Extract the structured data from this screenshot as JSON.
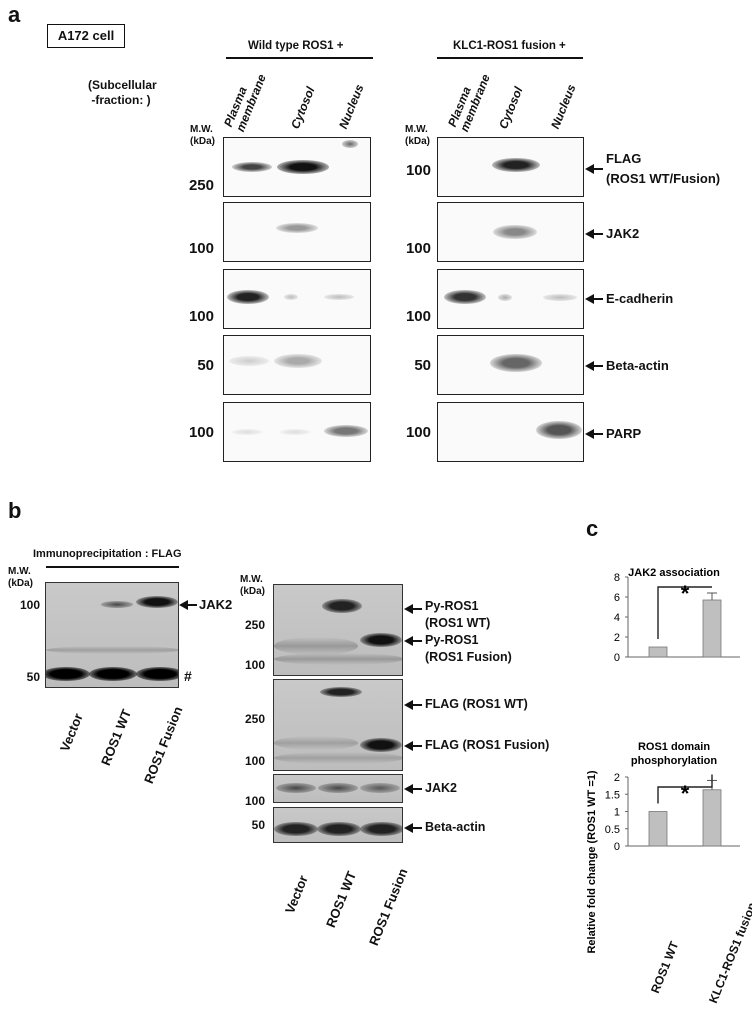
{
  "panel_a": {
    "letter": "a",
    "cell_line": "A172 cell",
    "fraction_label": "(Subcellular\n -fraction: )",
    "mw_header": "M.W.\n(kDa)",
    "group1": {
      "title": "Wild type ROS1 +"
    },
    "group2": {
      "title": "KLC1-ROS1 fusion +"
    },
    "lanes": [
      "Plasma\nmembrane",
      "Cytosol",
      "Nucleus"
    ],
    "blots": [
      {
        "marker": "250",
        "marker2": "100",
        "label": "FLAG\n(ROS1 WT/Fusion)"
      },
      {
        "marker": "100",
        "marker2": "100",
        "label": "JAK2"
      },
      {
        "marker": "100",
        "marker2": "100",
        "label": "E-cadherin"
      },
      {
        "marker": "50",
        "marker2": "50",
        "label": "Beta-actin"
      },
      {
        "marker": "100",
        "marker2": "100",
        "label": "PARP"
      }
    ]
  },
  "panel_b": {
    "letter": "b",
    "ip_title": "Immunoprecipitation : FLAG",
    "mw_header": "M.W.\n(kDa)",
    "left_markers": [
      "100",
      "50"
    ],
    "left_labels": {
      "jak2": "JAK2",
      "hash": "#"
    },
    "lanes": [
      "Vector",
      "ROS1 WT",
      "ROS1 Fusion"
    ],
    "right_mw_header": "M.W.\n(kDa)",
    "right_labels": {
      "py_wt": "Py-ROS1\n(ROS1 WT)",
      "py_fusion": "Py-ROS1\n(ROS1 Fusion)",
      "flag_wt": "FLAG (ROS1 WT)",
      "flag_fusion": "FLAG (ROS1 Fusion)",
      "jak2": "JAK2",
      "actin": "Beta-actin"
    },
    "right_markers": [
      "250",
      "100",
      "250",
      "100",
      "100",
      "50"
    ]
  },
  "panel_c": {
    "letter": "c",
    "ylabel": "Relative fold change (ROS1 WT =1)",
    "categories": [
      "ROS1 WT",
      "KLC1-ROS1 fusion"
    ],
    "significance": "*"
  },
  "chart_data": [
    {
      "type": "bar",
      "title": "JAK2 association",
      "categories": [
        "ROS1 WT",
        "KLC1-ROS1 fusion"
      ],
      "values": [
        1,
        5.7
      ],
      "errors": [
        0,
        0.7
      ],
      "ylim": [
        0,
        8
      ],
      "yticks": [
        0,
        2,
        4,
        6,
        8
      ],
      "ylabel": "Relative fold change (ROS1 WT =1)",
      "significance": "*",
      "bar_color": "#bfbfbf"
    },
    {
      "type": "bar",
      "title": "ROS1 domain\nphosphorylation",
      "categories": [
        "ROS1 WT",
        "KLC1-ROS1 fusion"
      ],
      "values": [
        1,
        1.63
      ],
      "errors": [
        0,
        0.27
      ],
      "ylim": [
        0,
        2
      ],
      "yticks": [
        0,
        0.5,
        1,
        1.5,
        2
      ],
      "ylabel": "Relative fold change (ROS1 WT =1)",
      "significance": "*",
      "bar_color": "#bfbfbf"
    }
  ]
}
